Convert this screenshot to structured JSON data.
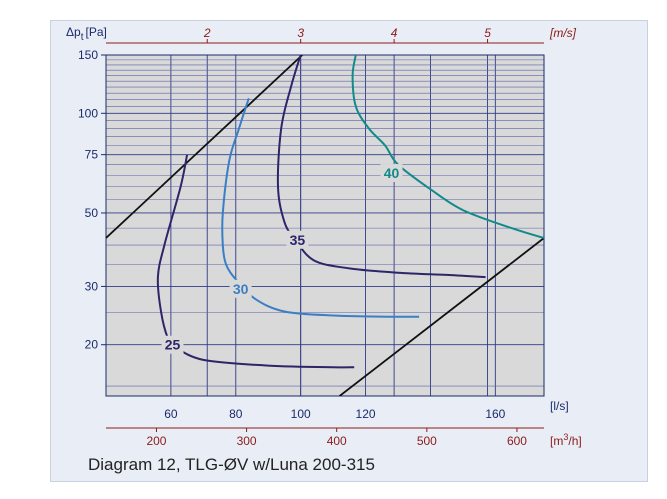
{
  "caption": "Diagram 12, TLG-ØV w/Luna 200-315",
  "chart_data": {
    "type": "line",
    "title": "",
    "ylabel_main": "Δp",
    "ylabel_sub": "t",
    "ylabel_unit": "[Pa]",
    "yscale": "log",
    "ylim": [
      14,
      150
    ],
    "y_ticks": [
      20,
      30,
      50,
      75,
      100,
      150
    ],
    "xscale": "linear",
    "xlim": [
      40,
      175
    ],
    "x_ticks": [
      60,
      80,
      100,
      120,
      140,
      160
    ],
    "x_ticks_shown": [
      "60",
      "80",
      "100",
      "120",
      "160"
    ],
    "x_unit": "[l/s]",
    "m3h_ticks": [
      200,
      300,
      400,
      500,
      600
    ],
    "m3h_unit": "[m3/h]",
    "ms_ticks": [
      2,
      3,
      4,
      5
    ],
    "ms_unit": "[m/s]",
    "grid": true,
    "colors": {
      "plot_bg": "#d9d9d9",
      "grid": "#2e3a87",
      "maroon": "#8b1a1a",
      "black": "#111111",
      "c25": "#2e2468",
      "c30": "#3a7fc4",
      "c35": "#2e2468",
      "c40": "#138a8a"
    },
    "series": [
      {
        "name": "25",
        "color": "#2e2468",
        "points": [
          [
            65,
            75
          ],
          [
            63,
            60
          ],
          [
            58,
            40
          ],
          [
            56,
            32
          ],
          [
            57,
            25
          ],
          [
            59,
            21
          ],
          [
            61,
            19.8
          ],
          [
            70,
            18
          ],
          [
            90,
            17.3
          ],
          [
            110,
            17.1
          ],
          [
            116.5,
            17.1
          ]
        ],
        "label_at": [
          60.5,
          20
        ]
      },
      {
        "name": "30",
        "color": "#3a7fc4",
        "points": [
          [
            84,
            111
          ],
          [
            81,
            90
          ],
          [
            78,
            72
          ],
          [
            76,
            50
          ],
          [
            76,
            40
          ],
          [
            77,
            35
          ],
          [
            80,
            31.5
          ],
          [
            86,
            27.5
          ],
          [
            95,
            25.2
          ],
          [
            110,
            24.5
          ],
          [
            127,
            24.3
          ],
          [
            136.5,
            24.3
          ]
        ],
        "label_at": [
          81.5,
          29.5
        ]
      },
      {
        "name": "35",
        "color": "#2e2468",
        "points": [
          [
            100,
            150
          ],
          [
            97,
            120
          ],
          [
            94,
            90
          ],
          [
            93,
            60
          ],
          [
            95,
            47
          ],
          [
            98,
            42
          ],
          [
            104,
            36
          ],
          [
            115,
            34
          ],
          [
            130,
            33
          ],
          [
            145,
            32.5
          ],
          [
            157,
            32
          ]
        ],
        "label_at": [
          99,
          41.5
        ]
      },
      {
        "name": "40",
        "color": "#138a8a",
        "points": [
          [
            117,
            150
          ],
          [
            116,
            130
          ],
          [
            117,
            105
          ],
          [
            121,
            90
          ],
          [
            126,
            80
          ],
          [
            130,
            70
          ],
          [
            140,
            59
          ],
          [
            150,
            51
          ],
          [
            165,
            45
          ],
          [
            175,
            42
          ]
        ],
        "label_at": [
          128,
          66
        ]
      }
    ],
    "limit_lines": [
      {
        "points": [
          [
            40,
            42
          ],
          [
            100.5,
            150
          ]
        ]
      },
      {
        "points": [
          [
            112,
            14
          ],
          [
            175,
            42
          ]
        ]
      }
    ]
  }
}
